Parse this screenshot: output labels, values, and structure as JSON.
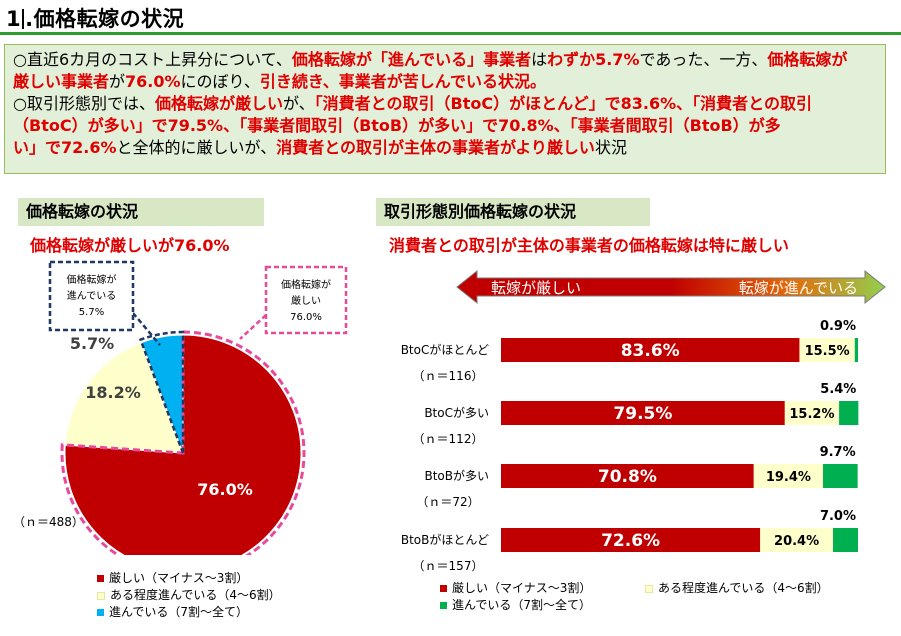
{
  "header": {
    "number": "1",
    "title": ".価格転嫁の状況"
  },
  "summary": {
    "l1": [
      "○直近6カ月のコスト上昇分について、",
      "価格転嫁が「進んでいる」事業者",
      "は",
      "わずか5.7%",
      "であった、一方、",
      "価格転嫁が"
    ],
    "l2": [
      "厳しい事業者",
      "が",
      "76.0%",
      "にのぼり、",
      "引き続き、事業者が苦しんでいる状況。"
    ],
    "l3": [
      "○取引形態別では、",
      "価格転嫁が厳しい",
      "が、",
      "「消費者との取引（BtoC）がほとんど」で83.6%、「消費者との取引"
    ],
    "l4": [
      "（BtoC）が多い」で79.5%、「事業者間取引（BtoB）が多い」で70.8%、「事業者間取引（BtoB）が多"
    ],
    "l5": [
      "い」で72.6%",
      "と全体的に厳しいが、",
      "消費者との取引が主体の事業者がより厳しい",
      "状況"
    ]
  },
  "left_panel": {
    "heading": "価格転嫁の状況",
    "subheading": "価格転嫁が厳しいが76.0%"
  },
  "right_panel": {
    "heading": "取引形態別価格転嫁の状況",
    "subheading": "消費者との取引が主体の事業者の価格転嫁は特に厳しい",
    "arrow_left": "転嫁が厳しい",
    "arrow_right": "転嫁が進んでいる"
  },
  "legend_labels": [
    "厳しい（マイナス〜3割）",
    "ある程度進んでいる（4〜6割）",
    "進んでいる（7割〜全て）"
  ],
  "colors": {
    "red": "#c00000",
    "cream": "#ffffcc",
    "blue": "#00b0f0",
    "green": "#00b050",
    "accent_red": "#e00000",
    "pink_dash": "#e84a9a",
    "navy_dash": "#1f3864",
    "title_green": "#2e9e2e",
    "summary_bg": "#e2efd9"
  },
  "chart_data": [
    {
      "type": "pie",
      "n_label": "（ｎ＝488）",
      "slices": [
        {
          "label": "厳しい（マイナス〜3割）",
          "value": 76.0,
          "value_label": "76.0%",
          "color": "#c00000"
        },
        {
          "label": "ある程度進んでいる（4〜6割）",
          "value": 18.2,
          "value_label": "18.2%",
          "color": "#ffffcc"
        },
        {
          "label": "進んでいる（7割〜全て）",
          "value": 5.7,
          "value_label": "5.7%",
          "color": "#00b0f0"
        }
      ],
      "callouts": [
        {
          "lines": [
            "価格転嫁が",
            "進んでいる",
            "5.7%"
          ]
        },
        {
          "lines": [
            "価格転嫁が",
            "厳しい",
            "76.0%"
          ]
        }
      ]
    },
    {
      "type": "bar",
      "orientation": "horizontal",
      "stacked": true,
      "xlim": [
        0,
        100
      ],
      "categories": [
        "BtoCがほとんど",
        "BtoCが多い",
        "BtoBが多い",
        "BtoBがほとんど"
      ],
      "n_labels": [
        "（ｎ＝116）",
        "（ｎ＝112）",
        "（ｎ＝72）",
        "（ｎ＝157）"
      ],
      "series": [
        {
          "name": "厳しい（マイナス〜3割）",
          "color": "#c00000",
          "values": [
            83.6,
            79.5,
            70.8,
            72.6
          ],
          "labels": [
            "83.6%",
            "79.5%",
            "70.8%",
            "72.6%"
          ]
        },
        {
          "name": "ある程度進んでいる（4〜6割）",
          "color": "#ffffcc",
          "values": [
            15.5,
            15.2,
            19.4,
            20.4
          ],
          "labels": [
            "15.5%",
            "15.2%",
            "19.4%",
            "20.4%"
          ]
        },
        {
          "name": "進んでいる（7割〜全て）",
          "color": "#00b050",
          "values": [
            0.9,
            5.4,
            9.7,
            7.0
          ],
          "labels": [
            "0.9%",
            "5.4%",
            "9.7%",
            "7.0%"
          ]
        }
      ]
    }
  ]
}
